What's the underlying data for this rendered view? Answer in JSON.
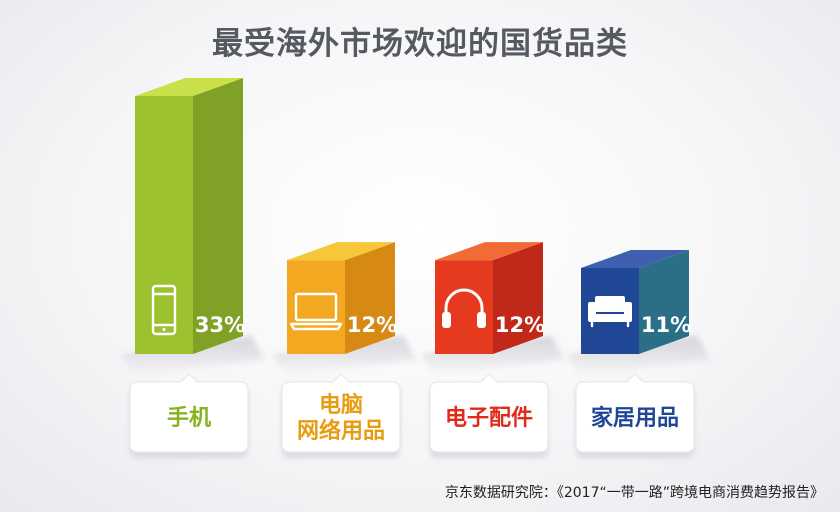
{
  "chart_data": {
    "type": "bar",
    "title": "最受海外市场欢迎的国货品类",
    "categories": [
      "手机",
      "电脑网络用品",
      "电子配件",
      "家居用品"
    ],
    "category_label_lines": [
      [
        "手机"
      ],
      [
        "电脑",
        "网络用品"
      ],
      [
        "电子配件"
      ],
      [
        "家居用品"
      ]
    ],
    "values": [
      33,
      12,
      12,
      11
    ],
    "value_labels": [
      "33%",
      "12%",
      "12%",
      "11%"
    ],
    "icons": [
      "phone-icon",
      "laptop-icon",
      "headphones-icon",
      "sofa-icon"
    ],
    "colors": [
      {
        "top": "#c9e04a",
        "front": "#9cc12e",
        "side": "#7fa126",
        "label": "#86b21f"
      },
      {
        "top": "#f7c73a",
        "front": "#f2a820",
        "side": "#d68a14",
        "label": "#e79c12"
      },
      {
        "top": "#f26a36",
        "front": "#e63a1f",
        "side": "#c0281a",
        "label": "#e02a1a"
      },
      {
        "top": "#3f5fb0",
        "front": "#1f4796",
        "side": "#2a6f86",
        "label": "#1f4796"
      }
    ],
    "ylim": [
      0,
      33
    ],
    "grid": false,
    "legend": "none"
  },
  "source": "京东数据研究院：《2017“一带一路”跨境电商消费趋势报告》"
}
